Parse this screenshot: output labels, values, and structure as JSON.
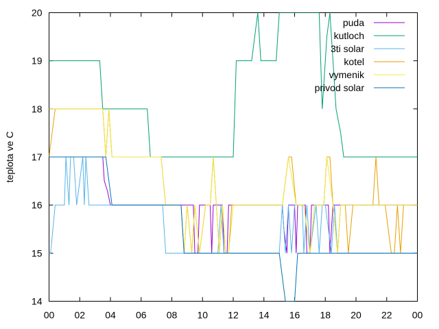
{
  "chart_data": {
    "type": "line",
    "title": "",
    "xlabel": "",
    "ylabel": "teplota ve C",
    "xlim": [
      0,
      24
    ],
    "ylim": [
      14,
      20
    ],
    "xticks": [
      "00",
      "02",
      "04",
      "06",
      "08",
      "10",
      "12",
      "14",
      "16",
      "18",
      "20",
      "22",
      "00"
    ],
    "yticks": [
      "14",
      "15",
      "16",
      "17",
      "18",
      "19",
      "20"
    ],
    "grid": false,
    "legend_position": "top-right",
    "series": [
      {
        "name": "puda",
        "color": "#9400d3",
        "x": [
          0,
          3.5,
          3.6,
          3.8,
          4.0,
          9.4,
          9.5,
          9.7,
          9.8,
          10.5,
          10.6,
          10.7,
          10.8,
          11.3,
          11.4,
          11.6,
          11.7,
          15.2,
          15.3,
          15.5,
          15.6,
          16.0,
          16.1,
          16.2,
          16.3,
          16.7,
          16.8,
          17.0,
          17.1,
          18.2,
          18.3,
          18.5,
          18.6,
          24
        ],
        "y": [
          17,
          17,
          16.5,
          16.3,
          16,
          16,
          15,
          15,
          16,
          16,
          15,
          16,
          16,
          16,
          15,
          15,
          16,
          16,
          15.5,
          15,
          16,
          16,
          15,
          16,
          16,
          16,
          15,
          15,
          16,
          16,
          15,
          16,
          16,
          16
        ]
      },
      {
        "name": "kutloch",
        "color": "#009e73",
        "x": [
          0,
          3.3,
          3.5,
          6.4,
          6.6,
          12.0,
          12.2,
          13.2,
          13.4,
          13.6,
          13.8,
          14.0,
          14.2,
          14.8,
          15.0,
          15.2,
          17.6,
          17.8,
          17.9,
          18.0,
          18.1,
          18.3,
          18.5,
          18.7,
          19.0,
          19.2,
          24
        ],
        "y": [
          19,
          19,
          18,
          18,
          17,
          17,
          19,
          19,
          19.5,
          20,
          19,
          19,
          19,
          19,
          20,
          20,
          20,
          18,
          18.5,
          19,
          19.5,
          20,
          19,
          18,
          17.5,
          17,
          17
        ]
      },
      {
        "name": "3ti solar",
        "color": "#56b4e9",
        "x": [
          0,
          0.1,
          0.4,
          1.0,
          1.1,
          1.3,
          1.4,
          1.6,
          1.8,
          2.2,
          2.3,
          2.4,
          2.6,
          2.8,
          3.0,
          7.4,
          7.6,
          8.6,
          9.0,
          9.4,
          11.0,
          11.2,
          11.4,
          15.0,
          15.2,
          15.4,
          15.6,
          15.8,
          16.0,
          16.5,
          16.6,
          16.8,
          17.0,
          17.4,
          17.6,
          17.8,
          18.0,
          18.4,
          18.6,
          18.8,
          19.0,
          24
        ],
        "y": [
          15,
          15,
          16,
          16,
          17,
          16,
          17,
          17,
          16,
          17,
          16,
          17,
          16,
          16,
          16,
          16,
          15,
          15,
          15,
          15,
          15,
          16,
          15,
          15,
          16,
          15,
          16,
          15,
          16,
          16,
          15,
          16,
          15,
          16,
          15,
          16,
          16,
          15,
          16,
          15,
          15,
          15
        ]
      },
      {
        "name": "kotel",
        "color": "#e69f00",
        "x": [
          0,
          0.2,
          0.4,
          3.5,
          3.7,
          3.9,
          4.1,
          7.3,
          7.6,
          8.6,
          8.8,
          9.0,
          9.3,
          9.5,
          9.8,
          10.2,
          10.5,
          10.7,
          10.9,
          11.1,
          11.3,
          11.5,
          11.7,
          11.9,
          12.1,
          12.3,
          15.2,
          15.4,
          15.6,
          15.8,
          16.1,
          16.3,
          16.6,
          17.0,
          17.3,
          17.6,
          17.9,
          18.1,
          18.3,
          18.5,
          18.8,
          19.0,
          19.3,
          19.5,
          19.8,
          20.2,
          21.1,
          21.3,
          21.5,
          21.7,
          21.9,
          22.3,
          22.5,
          22.7,
          22.9,
          23.1,
          24
        ],
        "y": [
          17,
          17.5,
          18,
          18,
          17,
          18,
          17,
          17,
          16,
          16,
          15,
          16,
          15,
          16,
          15,
          16,
          16,
          17,
          16,
          15,
          16,
          15,
          15,
          16,
          16,
          16,
          16,
          16.5,
          17,
          17,
          16,
          16,
          16,
          15,
          16,
          16,
          16,
          17,
          17,
          16,
          15,
          16,
          16,
          15,
          16,
          16,
          16,
          17,
          16,
          16,
          16,
          15,
          15,
          16,
          15,
          16,
          16
        ]
      },
      {
        "name": "vymenik",
        "color": "#f0e442",
        "x": [
          0,
          3.5,
          3.7,
          3.9,
          4.1,
          7.3,
          7.6,
          8.6,
          8.8,
          9.0,
          9.3,
          9.5,
          9.8,
          10.2,
          10.5,
          10.7,
          10.9,
          11.1,
          11.3,
          11.5,
          11.7,
          12.0,
          15.2,
          15.6,
          16.1,
          16.6,
          17.0,
          17.3,
          17.6,
          17.9,
          18.1,
          18.5,
          18.8,
          19.0,
          24
        ],
        "y": [
          18,
          18,
          17,
          18,
          17,
          17,
          16,
          16,
          15,
          16,
          15,
          16,
          15,
          16,
          16,
          17,
          16,
          15,
          16,
          15,
          15,
          16,
          16,
          17,
          16,
          16,
          15,
          16,
          16,
          16,
          17,
          16,
          15,
          16,
          16
        ]
      },
      {
        "name": "privod solar",
        "color": "#0072b2",
        "x": [
          0,
          3.7,
          3.9,
          4.1,
          8.6,
          8.8,
          15.0,
          15.2,
          15.4,
          15.6,
          15.8,
          16.0,
          16.2,
          16.4,
          24
        ],
        "y": [
          17,
          17,
          16.5,
          16,
          16,
          15,
          15,
          14.5,
          14,
          14,
          14,
          14,
          15,
          15,
          15
        ]
      }
    ]
  }
}
